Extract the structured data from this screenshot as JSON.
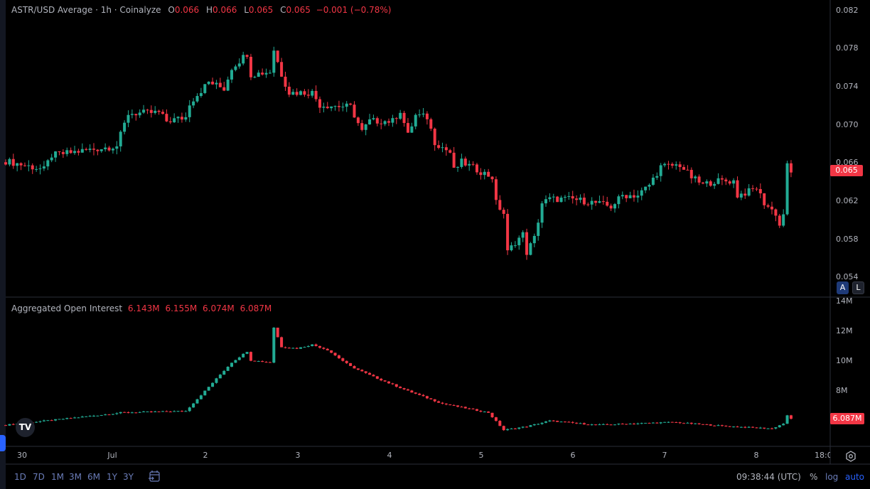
{
  "header": {
    "title": "ASTR/USD Average · 1h · Coinalyze",
    "ohlc": {
      "o_label": "O",
      "o": "0.066",
      "h_label": "H",
      "h": "0.066",
      "l_label": "L",
      "l": "0.065",
      "c_label": "C",
      "c": "0.065",
      "change": "−0.001 (−0.78%)"
    }
  },
  "oi_legend": {
    "title": "Aggregated Open Interest",
    "values": [
      "6.143M",
      "6.155M",
      "6.074M",
      "6.087M"
    ]
  },
  "price_axis": {
    "ticks": [
      "0.082",
      "0.078",
      "0.074",
      "0.070",
      "0.066",
      "0.062",
      "0.058",
      "0.054"
    ],
    "last_price": "0.065"
  },
  "oi_axis": {
    "ticks": [
      "14M",
      "12M",
      "10M",
      "8M"
    ],
    "last_value": "6.087M"
  },
  "scale_buttons": {
    "a": "A",
    "l": "L"
  },
  "time_axis": {
    "labels": [
      "30",
      "Jul",
      "2",
      "3",
      "4",
      "5",
      "6",
      "7",
      "8",
      "18:0"
    ]
  },
  "toolbar": {
    "ranges": [
      "1D",
      "7D",
      "1M",
      "3M",
      "6M",
      "1Y",
      "3Y"
    ],
    "clock": "09:38:44 (UTC)",
    "percent": "%",
    "log": "log",
    "auto": "auto"
  },
  "logo_text": "TV",
  "colors": {
    "up": "#22ab94",
    "down": "#f23645",
    "background": "#000000",
    "grid": "#2a2e39",
    "accent": "#2962ff"
  },
  "chart_data": [
    {
      "type": "candlestick",
      "title": "ASTR/USD Average · 1h · Coinalyze",
      "interval": "1h",
      "ylim": [
        0.054,
        0.082
      ],
      "grid": false,
      "note_series": "approximate closes at key times, hourly candles between",
      "closes": [
        [
          "Jun 29 20:00",
          0.0662
        ],
        [
          "Jun 30 06:00",
          0.0653
        ],
        [
          "Jun 30 08:00",
          0.0668
        ],
        [
          "Jul 1 01:00",
          0.0678
        ],
        [
          "Jul 1 04:00",
          0.0712
        ],
        [
          "Jul 1 12:00",
          0.0713
        ],
        [
          "Jul 1 14:00",
          0.0704
        ],
        [
          "Jul 1 19:00",
          0.0708
        ],
        [
          "Jul 1 20:00",
          0.0723
        ],
        [
          "Jul 2 01:00",
          0.0745
        ],
        [
          "Jul 2 05:00",
          0.0738
        ],
        [
          "Jul 2 07:00",
          0.076
        ],
        [
          "Jul 2 11:00",
          0.0775
        ],
        [
          "Jul 2 12:00",
          0.0753
        ],
        [
          "Jul 2 17:00",
          0.0756
        ],
        [
          "Jul 2 18:00",
          0.0779
        ],
        [
          "Jul 2 20:00",
          0.0753
        ],
        [
          "Jul 2 22:00",
          0.0734
        ],
        [
          "Jul 3 04:00",
          0.0734
        ],
        [
          "Jul 3 06:00",
          0.0721
        ],
        [
          "Jul 3 14:00",
          0.0719
        ],
        [
          "Jul 3 17:00",
          0.0693
        ],
        [
          "Jul 3 19:00",
          0.0704
        ],
        [
          "Jul 4 01:00",
          0.0704
        ],
        [
          "Jul 4 03:00",
          0.0715
        ],
        [
          "Jul 4 05:00",
          0.0689
        ],
        [
          "Jul 4 07:00",
          0.071
        ],
        [
          "Jul 4 10:00",
          0.0708
        ],
        [
          "Jul 4 12:00",
          0.0682
        ],
        [
          "Jul 4 16:00",
          0.0671
        ],
        [
          "Jul 4 17:00",
          0.0652
        ],
        [
          "Jul 4 19:00",
          0.0661
        ],
        [
          "Jul 5 01:00",
          0.0649
        ],
        [
          "Jul 5 03:00",
          0.0645
        ],
        [
          "Jul 5 04:00",
          0.0618
        ],
        [
          "Jul 5 06:00",
          0.0607
        ],
        [
          "Jul 5 07:00",
          0.0566
        ],
        [
          "Jul 5 09:00",
          0.0577
        ],
        [
          "Jul 5 11:00",
          0.0585
        ],
        [
          "Jul 5 12:00",
          0.0566
        ],
        [
          "Jul 5 14:00",
          0.0581
        ],
        [
          "Jul 5 16:00",
          0.0618
        ],
        [
          "Jul 5 18:00",
          0.0622
        ],
        [
          "Jul 6 00:00",
          0.0622
        ],
        [
          "Jul 6 06:00",
          0.0618
        ],
        [
          "Jul 6 10:00",
          0.0614
        ],
        [
          "Jul 6 13:00",
          0.0626
        ],
        [
          "Jul 6 17:00",
          0.0626
        ],
        [
          "Jul 6 20:00",
          0.0637
        ],
        [
          "Jul 6 23:00",
          0.0656
        ],
        [
          "Jul 7 04:00",
          0.0658
        ],
        [
          "Jul 7 07:00",
          0.0645
        ],
        [
          "Jul 7 10:00",
          0.0637
        ],
        [
          "Jul 7 13:00",
          0.0641
        ],
        [
          "Jul 7 18:00",
          0.0641
        ],
        [
          "Jul 7 19:00",
          0.0626
        ],
        [
          "Jul 7 22:00",
          0.063
        ],
        [
          "Jul 8 00:00",
          0.0634
        ],
        [
          "Jul 8 02:00",
          0.0618
        ],
        [
          "Jul 8 05:00",
          0.0607
        ],
        [
          "Jul 8 06:00",
          0.0594
        ],
        [
          "Jul 8 07:00",
          0.0607
        ],
        [
          "Jul 8 08:00",
          0.0657
        ],
        [
          "Jul 8 09:00",
          0.065
        ]
      ]
    },
    {
      "type": "candlestick",
      "title": "Aggregated Open Interest",
      "interval": "1h",
      "ylim_millions": [
        4,
        14
      ],
      "values_millions": [
        [
          "Jun 29 20:00",
          5.67
        ],
        [
          "Jul 1 00:00",
          6.43
        ],
        [
          "Jul 1 02:00",
          6.5
        ],
        [
          "Jul 1 19:00",
          6.6
        ],
        [
          "Jul 2 00:00",
          7.95
        ],
        [
          "Jul 2 07:00",
          9.86
        ],
        [
          "Jul 2 11:00",
          10.6
        ],
        [
          "Jul 2 12:00",
          10.0
        ],
        [
          "Jul 2 17:00",
          9.86
        ],
        [
          "Jul 2 18:00",
          12.2
        ],
        [
          "Jul 2 20:00",
          10.9
        ],
        [
          "Jul 3 00:00",
          10.8
        ],
        [
          "Jul 3 04:00",
          11.05
        ],
        [
          "Jul 3 08:00",
          10.7
        ],
        [
          "Jul 3 14:00",
          9.6
        ],
        [
          "Jul 3 20:00",
          8.9
        ],
        [
          "Jul 4 05:00",
          7.95
        ],
        [
          "Jul 4 14:00",
          7.1
        ],
        [
          "Jul 5 02:00",
          6.5
        ],
        [
          "Jul 5 06:00",
          5.33
        ],
        [
          "Jul 5 12:00",
          5.57
        ],
        [
          "Jul 5 18:00",
          5.95
        ],
        [
          "Jul 6 06:00",
          5.67
        ],
        [
          "Jul 7 02:00",
          5.86
        ],
        [
          "Jul 7 17:00",
          5.57
        ],
        [
          "Jul 8 04:00",
          5.43
        ],
        [
          "Jul 8 07:00",
          5.76
        ],
        [
          "Jul 8 08:00",
          6.29
        ],
        [
          "Jul 8 09:00",
          6.087
        ]
      ]
    }
  ]
}
